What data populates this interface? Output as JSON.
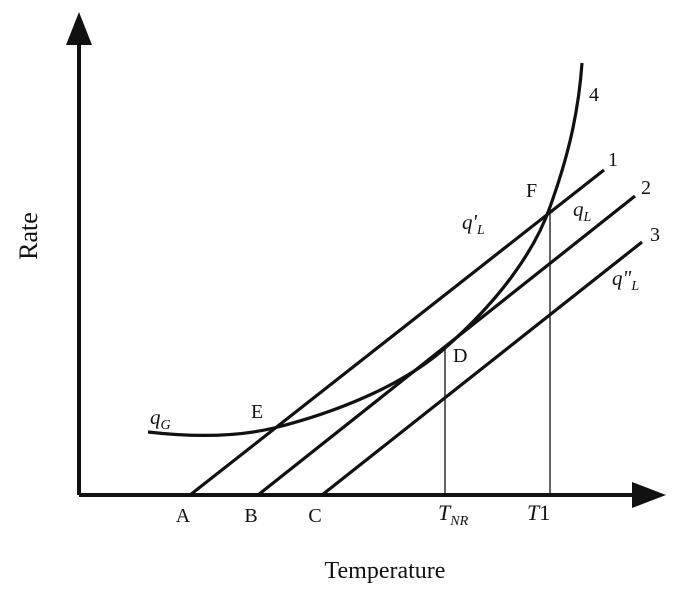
{
  "axes": {
    "y_label": "Rate",
    "x_label": "Temperature"
  },
  "points": {
    "A": "A",
    "B": "B",
    "C": "C",
    "D": "D",
    "E": "E",
    "F": "F"
  },
  "curve_numbers": {
    "n1": "1",
    "n2": "2",
    "n3": "3",
    "n4": "4"
  },
  "curve_labels": {
    "qG_base": "q",
    "qG_sub": "G",
    "qL1_base": "q'",
    "qL1_sub": "L",
    "qL_base": "q",
    "qL_sub": "L",
    "qL3_base": "q\"",
    "qL3_sub": "L"
  },
  "temperature_marks": {
    "tnr_base": "T",
    "tnr_sub": "NR",
    "t1_base": "T",
    "t1_num": "1"
  },
  "colors": {
    "ink": "#111111",
    "background": "#ffffff"
  }
}
